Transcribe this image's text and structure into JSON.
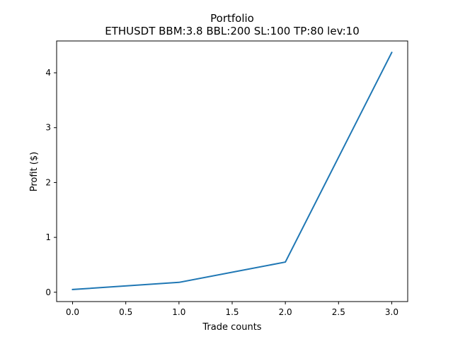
{
  "chart_data": {
    "type": "line",
    "title": "Portfolio",
    "subtitle": "ETHUSDT BBM:3.8 BBL:200 SL:100 TP:80 lev:10",
    "xlabel": "Trade counts",
    "ylabel": "Profit ($)",
    "xlim": [
      -0.15,
      3.15
    ],
    "ylim": [
      -0.17,
      4.58
    ],
    "xticks": [
      0.0,
      0.5,
      1.0,
      1.5,
      2.0,
      2.5,
      3.0
    ],
    "xtick_labels": [
      "0.0",
      "0.5",
      "1.0",
      "1.5",
      "2.0",
      "2.5",
      "3.0"
    ],
    "yticks": [
      0,
      1,
      2,
      3,
      4
    ],
    "ytick_labels": [
      "0",
      "1",
      "2",
      "3",
      "4"
    ],
    "grid": false,
    "series": [
      {
        "color": "#1f77b4",
        "x": [
          0,
          1,
          2,
          3
        ],
        "y": [
          0.05,
          0.18,
          0.55,
          4.37
        ]
      }
    ]
  }
}
